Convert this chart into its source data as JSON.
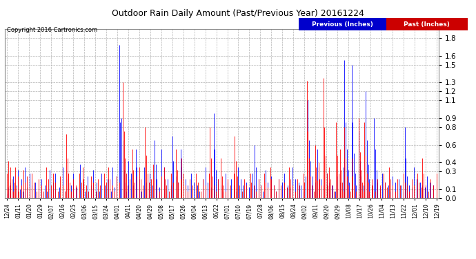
{
  "title": "Outdoor Rain Daily Amount (Past/Previous Year) 20161224",
  "copyright": "Copyright 2016 Cartronics.com",
  "legend_prev": "Previous (Inches)",
  "legend_past": "Past (Inches)",
  "yticks": [
    0.0,
    0.1,
    0.3,
    0.4,
    0.6,
    0.8,
    0.9,
    1.1,
    1.2,
    1.3,
    1.5,
    1.6,
    1.8
  ],
  "ylim": [
    0.0,
    1.9
  ],
  "color_prev": "#0000FF",
  "color_past": "#FF0000",
  "fig_bg": "#ffffff",
  "plot_bg": "#ffffff",
  "grid_color": "#aaaaaa",
  "x_labels": [
    "12/24",
    "01/11",
    "01/20",
    "01/29",
    "02/07",
    "02/16",
    "02/25",
    "03/06",
    "03/15",
    "03/24",
    "04/01",
    "04/11",
    "04/20",
    "04/29",
    "05/08",
    "05/17",
    "05/26",
    "06/04",
    "06/13",
    "06/22",
    "07/01",
    "07/10",
    "07/19",
    "07/28",
    "08/06",
    "08/15",
    "08/24",
    "09/02",
    "09/11",
    "09/20",
    "09/29",
    "10/08",
    "10/17",
    "10/26",
    "11/04",
    "11/13",
    "11/22",
    "12/01",
    "12/10",
    "12/19"
  ],
  "num_points": 365,
  "prev_rain": [
    0.05,
    0.12,
    0.0,
    0.18,
    0.08,
    0.25,
    0.0,
    0.0,
    0.15,
    0.32,
    0.0,
    0.1,
    0.22,
    0.08,
    0.0,
    0.35,
    0.0,
    0.12,
    0.0,
    0.28,
    0.0,
    0.15,
    0.0,
    0.0,
    0.18,
    0.0,
    0.0,
    0.08,
    0.0,
    0.22,
    0.0,
    0.0,
    0.15,
    0.0,
    0.08,
    0.0,
    0.32,
    0.0,
    0.0,
    0.18,
    0.0,
    0.28,
    0.0,
    0.0,
    0.12,
    0.0,
    0.0,
    0.35,
    0.0,
    0.08,
    0.0,
    0.22,
    0.0,
    0.0,
    0.15,
    0.0,
    0.28,
    0.0,
    0.0,
    0.12,
    0.0,
    0.0,
    0.38,
    0.0,
    0.18,
    0.0,
    0.08,
    0.0,
    0.25,
    0.0,
    0.0,
    0.15,
    0.0,
    0.32,
    0.0,
    0.0,
    0.18,
    0.0,
    0.08,
    0.0,
    0.28,
    0.0,
    0.0,
    0.15,
    0.0,
    0.22,
    0.0,
    0.0,
    0.08,
    0.35,
    0.0,
    0.12,
    0.0,
    0.25,
    0.0,
    1.72,
    0.85,
    0.9,
    0.65,
    0.32,
    0.18,
    0.08,
    0.0,
    0.42,
    0.0,
    0.28,
    0.0,
    0.15,
    0.0,
    0.55,
    0.35,
    0.0,
    0.22,
    0.0,
    0.08,
    0.0,
    0.35,
    0.0,
    0.18,
    0.0,
    0.0,
    0.28,
    0.0,
    0.15,
    0.0,
    0.65,
    0.38,
    0.22,
    0.0,
    0.12,
    0.0,
    0.55,
    0.0,
    0.35,
    0.0,
    0.0,
    0.22,
    0.0,
    0.0,
    0.15,
    0.7,
    0.42,
    0.0,
    0.25,
    0.0,
    0.18,
    0.0,
    0.55,
    0.35,
    0.0,
    0.0,
    0.22,
    0.0,
    0.15,
    0.0,
    0.0,
    0.28,
    0.0,
    0.18,
    0.0,
    0.0,
    0.15,
    0.0,
    0.08,
    0.0,
    0.0,
    0.22,
    0.0,
    0.35,
    0.0,
    0.18,
    0.0,
    0.0,
    0.12,
    0.0,
    0.95,
    0.55,
    0.32,
    0.0,
    0.22,
    0.0,
    0.15,
    0.0,
    0.08,
    0.0,
    0.28,
    0.0,
    0.18,
    0.0,
    0.0,
    0.22,
    0.0,
    0.15,
    0.0,
    0.08,
    0.0,
    0.35,
    0.0,
    0.22,
    0.0,
    0.15,
    0.0,
    0.0,
    0.18,
    0.0,
    0.12,
    0.0,
    0.0,
    0.28,
    0.0,
    0.6,
    0.35,
    0.0,
    0.22,
    0.0,
    0.15,
    0.0,
    0.08,
    0.0,
    0.32,
    0.0,
    0.18,
    0.0,
    0.0,
    0.25,
    0.0,
    0.15,
    0.0,
    0.08,
    0.0,
    0.22,
    0.0,
    0.0,
    0.18,
    0.0,
    0.28,
    0.0,
    0.0,
    0.15,
    0.0,
    0.12,
    0.0,
    0.35,
    0.0,
    0.22,
    0.0,
    0.0,
    0.18,
    0.0,
    0.15,
    0.0,
    0.08,
    0.0,
    0.25,
    0.0,
    1.1,
    0.65,
    0.42,
    0.0,
    0.25,
    0.0,
    0.18,
    0.0,
    0.55,
    0.35,
    0.0,
    0.22,
    0.0,
    0.15,
    0.0,
    0.0,
    0.28,
    0.0,
    0.18,
    0.0,
    0.0,
    0.15,
    0.0,
    0.08,
    0.0,
    0.25,
    0.0,
    0.18,
    0.0,
    0.0,
    0.35,
    1.55,
    0.85,
    0.55,
    0.32,
    0.18,
    0.0,
    1.5,
    0.85,
    0.5,
    0.28,
    0.15,
    0.0,
    0.75,
    0.42,
    0.25,
    0.0,
    0.15,
    0.0,
    1.2,
    0.65,
    0.38,
    0.22,
    0.0,
    0.15,
    0.0,
    0.9,
    0.55,
    0.32,
    0.18,
    0.0,
    0.12,
    0.0,
    0.28,
    0.0,
    0.18,
    0.0,
    0.0,
    0.15,
    0.0,
    0.08,
    0.0,
    0.25,
    0.0,
    0.18,
    0.0,
    0.0,
    0.22,
    0.0,
    0.15,
    0.0,
    0.08,
    0.8,
    0.45,
    0.25,
    0.0,
    0.15,
    0.0,
    0.12,
    0.0,
    0.35,
    0.0,
    0.22,
    0.0,
    0.0,
    0.18,
    0.0,
    0.15,
    0.0,
    0.12,
    0.0,
    0.25,
    0.0,
    0.18,
    0.0,
    0.0,
    0.15
  ],
  "past_rain": [
    0.28,
    0.42,
    0.15,
    0.35,
    0.22,
    0.08,
    0.18,
    0.35,
    0.12,
    0.25,
    0.08,
    0.0,
    0.15,
    0.0,
    0.32,
    0.18,
    0.0,
    0.25,
    0.0,
    0.12,
    0.0,
    0.28,
    0.0,
    0.18,
    0.0,
    0.08,
    0.0,
    0.22,
    0.0,
    0.15,
    0.0,
    0.08,
    0.0,
    0.35,
    0.0,
    0.22,
    0.0,
    0.15,
    0.0,
    0.28,
    0.0,
    0.18,
    0.0,
    0.08,
    0.0,
    0.25,
    0.0,
    0.15,
    0.0,
    0.08,
    0.72,
    0.45,
    0.28,
    0.18,
    0.08,
    0.0,
    0.22,
    0.0,
    0.15,
    0.0,
    0.0,
    0.28,
    0.0,
    0.18,
    0.35,
    0.22,
    0.0,
    0.15,
    0.0,
    0.08,
    0.0,
    0.25,
    0.0,
    0.18,
    0.0,
    0.08,
    0.0,
    0.22,
    0.0,
    0.15,
    0.0,
    0.0,
    0.28,
    0.0,
    0.18,
    0.0,
    0.35,
    0.22,
    0.0,
    0.15,
    0.0,
    0.08,
    0.0,
    0.25,
    0.0,
    0.18,
    0.0,
    0.0,
    1.3,
    0.75,
    0.45,
    0.28,
    0.15,
    0.0,
    0.22,
    0.0,
    0.55,
    0.32,
    0.18,
    0.0,
    0.25,
    0.0,
    0.35,
    0.22,
    0.0,
    0.15,
    0.0,
    0.8,
    0.48,
    0.28,
    0.18,
    0.0,
    0.22,
    0.0,
    0.38,
    0.22,
    0.0,
    0.15,
    0.0,
    0.08,
    0.0,
    0.25,
    0.0,
    0.35,
    0.22,
    0.15,
    0.0,
    0.08,
    0.0,
    0.28,
    0.0,
    0.18,
    0.0,
    0.55,
    0.32,
    0.18,
    0.0,
    0.22,
    0.45,
    0.28,
    0.0,
    0.15,
    0.0,
    0.08,
    0.0,
    0.22,
    0.0,
    0.15,
    0.0,
    0.0,
    0.28,
    0.0,
    0.18,
    0.0,
    0.08,
    0.0,
    0.22,
    0.0,
    0.15,
    0.0,
    0.0,
    0.28,
    0.8,
    0.45,
    0.25,
    0.15,
    0.0,
    0.08,
    0.0,
    0.22,
    0.0,
    0.45,
    0.25,
    0.15,
    0.0,
    0.08,
    0.0,
    0.22,
    0.0,
    0.15,
    0.0,
    0.0,
    0.28,
    0.7,
    0.42,
    0.25,
    0.0,
    0.15,
    0.0,
    0.08,
    0.0,
    0.22,
    0.0,
    0.15,
    0.0,
    0.0,
    0.28,
    0.18,
    0.0,
    0.15,
    0.0,
    0.08,
    0.0,
    0.22,
    0.0,
    0.15,
    0.0,
    0.0,
    0.28,
    0.18,
    0.0,
    0.12,
    0.0,
    0.35,
    0.22,
    0.0,
    0.15,
    0.0,
    0.08,
    0.0,
    0.22,
    0.0,
    0.15,
    0.0,
    0.0,
    0.18,
    0.0,
    0.12,
    0.0,
    0.35,
    0.22,
    0.0,
    0.15,
    0.0,
    0.08,
    0.0,
    0.22,
    0.0,
    0.15,
    0.0,
    0.0,
    0.28,
    0.18,
    0.0,
    1.32,
    0.75,
    0.45,
    0.25,
    0.15,
    0.0,
    0.08,
    0.6,
    0.35,
    0.2,
    0.4,
    0.22,
    0.15,
    0.0,
    1.35,
    0.8,
    0.48,
    0.28,
    0.15,
    0.35,
    0.22,
    0.15,
    0.0,
    0.08,
    0.0,
    0.85,
    0.48,
    0.28,
    0.55,
    0.32,
    0.18,
    0.08,
    0.8,
    0.45,
    0.25,
    0.15,
    0.0,
    0.08,
    0.45,
    0.25,
    0.15,
    0.0,
    0.08,
    0.0,
    0.9,
    0.52,
    0.32,
    0.18,
    0.08,
    0.85,
    0.48,
    0.28,
    0.18,
    0.08,
    0.0,
    0.22,
    0.15,
    0.0,
    0.08,
    0.0,
    0.22,
    0.0,
    0.15,
    0.0,
    0.0,
    0.28,
    0.18,
    0.0,
    0.12,
    0.0,
    0.35,
    0.22,
    0.0,
    0.15,
    0.0,
    0.08,
    0.0,
    0.22,
    0.0,
    0.15,
    0.0,
    0.0,
    0.28,
    0.18,
    0.0,
    0.15,
    0.0,
    0.08,
    0.0,
    0.22,
    0.0,
    0.15,
    0.0,
    0.0,
    0.28,
    0.18,
    0.0,
    0.12,
    0.45,
    0.28,
    0.0,
    0.15,
    0.0,
    0.08,
    0.0,
    0.22,
    0.0,
    0.15,
    0.0,
    0.0,
    0.28,
    0.18,
    0.0,
    0.15
  ]
}
